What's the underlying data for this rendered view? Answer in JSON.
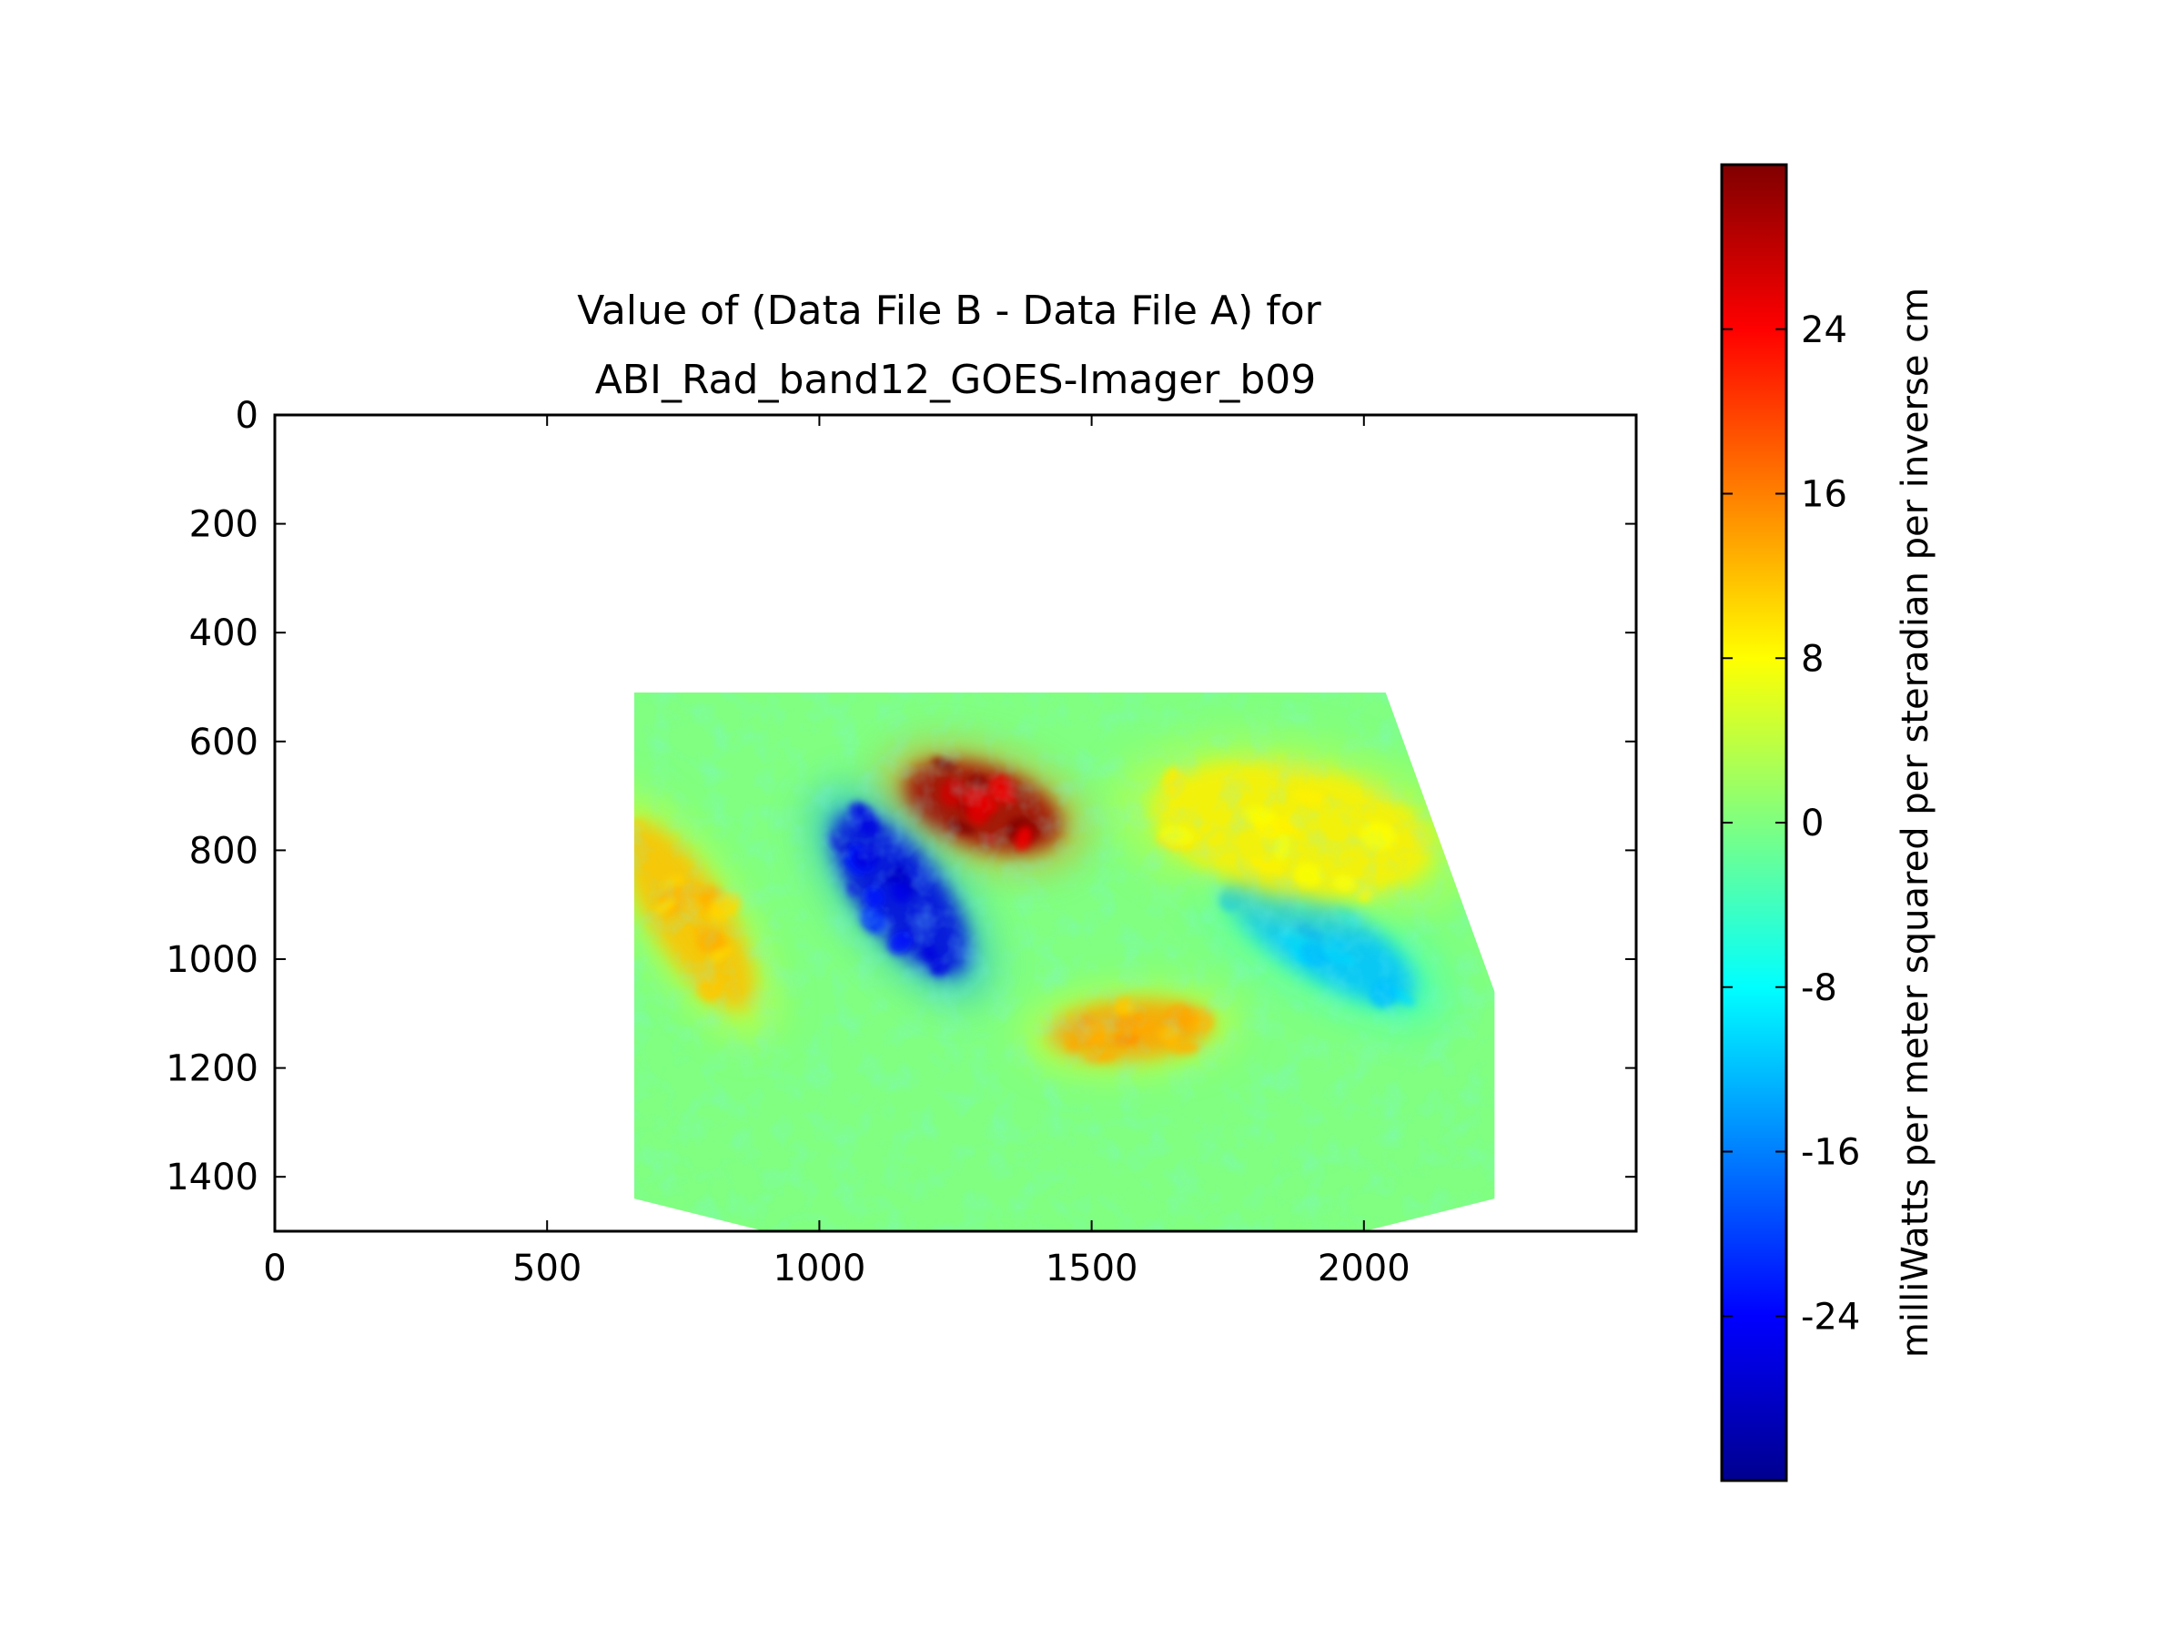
{
  "chart_data": {
    "type": "heatmap",
    "title": "Value of (Data File B - Data File A) for\nABI_Rad_band12_GOES-Imager_b09",
    "xlabel": "",
    "ylabel": "",
    "xlim": [
      0,
      2500
    ],
    "ylim": [
      1500,
      0
    ],
    "x_ticks": [
      0,
      500,
      1000,
      1500,
      2000
    ],
    "y_ticks": [
      0,
      200,
      400,
      600,
      800,
      1000,
      1200,
      1400
    ],
    "data_region": {
      "x_range": [
        660,
        2240
      ],
      "y_range": [
        510,
        1500
      ],
      "outline": [
        [
          660,
          510
        ],
        [
          2040,
          510
        ],
        [
          2240,
          1060
        ],
        [
          2240,
          1440
        ],
        [
          2000,
          1500
        ],
        [
          900,
          1500
        ],
        [
          660,
          1440
        ]
      ]
    },
    "background_value": 0,
    "features": [
      {
        "label": "strong positive anomaly",
        "x": 1300,
        "y": 720,
        "value": 30
      },
      {
        "label": "strong negative anomaly",
        "x": 1150,
        "y": 880,
        "value": -26
      },
      {
        "label": "positive anomaly",
        "x": 1570,
        "y": 1130,
        "value": 14
      },
      {
        "label": "negative anomaly",
        "x": 1920,
        "y": 960,
        "value": -12
      },
      {
        "label": "positive anomaly",
        "x": 1870,
        "y": 760,
        "value": 9
      },
      {
        "label": "mixed anomaly band",
        "x": 760,
        "y": 920,
        "value": 12
      }
    ],
    "colormap": "jet",
    "colorbar": {
      "label": "milliWatts per meter squared per steradian per inverse cm",
      "range": [
        -32,
        32
      ],
      "ticks": [
        24,
        16,
        8,
        0,
        -8,
        -16,
        -24
      ],
      "tick_labels": [
        "24",
        "16",
        "8",
        "0",
        "-8",
        "-16",
        "-24"
      ]
    },
    "grid": false,
    "legend": false
  }
}
